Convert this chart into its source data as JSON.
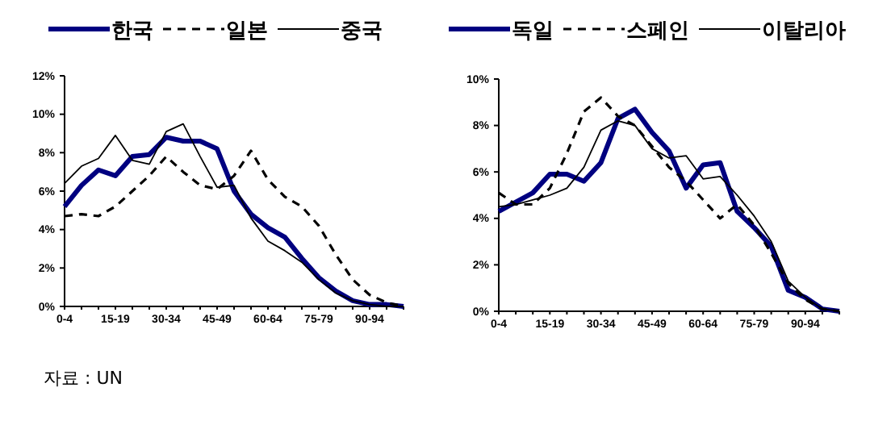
{
  "chart_data": [
    {
      "type": "line",
      "categories": [
        "0-4",
        null,
        null,
        "15-19",
        null,
        null,
        "30-34",
        null,
        null,
        "45-49",
        null,
        null,
        "60-64",
        null,
        null,
        "75-79",
        null,
        null,
        "90-94",
        null,
        null
      ],
      "series": [
        {
          "name": "한국",
          "color": "#000080",
          "line_style": "solid",
          "values": [
            5.2,
            6.3,
            7.1,
            6.8,
            7.8,
            7.9,
            8.8,
            8.6,
            8.6,
            8.2,
            6.0,
            4.8,
            4.1,
            3.6,
            2.5,
            1.5,
            0.8,
            0.3,
            0.1,
            0.1,
            0
          ]
        },
        {
          "name": "일본",
          "color": "#000000",
          "line_style": "dashed",
          "values": [
            4.7,
            4.8,
            4.7,
            5.2,
            6.0,
            6.8,
            7.8,
            7.0,
            6.3,
            6.1,
            6.8,
            8.1,
            6.6,
            5.7,
            5.2,
            4.2,
            2.7,
            1.4,
            0.6,
            0.2,
            0
          ]
        },
        {
          "name": "중국",
          "color": "#000000",
          "line_style": "solid",
          "values": [
            6.4,
            7.3,
            7.7,
            8.9,
            7.6,
            7.4,
            9.1,
            9.5,
            7.8,
            6.2,
            6.3,
            4.6,
            3.4,
            2.9,
            2.3,
            1.4,
            0.7,
            0.3,
            0.1,
            0,
            0
          ]
        }
      ],
      "ylim": [
        0,
        12
      ],
      "yticks": [
        {
          "value": 0,
          "label": "0%"
        },
        {
          "value": 2,
          "label": "2%"
        },
        {
          "value": 4,
          "label": "4%"
        },
        {
          "value": 6,
          "label": "6%"
        },
        {
          "value": 8,
          "label": "8%"
        },
        {
          "value": 10,
          "label": "10%"
        },
        {
          "value": 12,
          "label": "12%"
        }
      ],
      "grid": false,
      "legend": "top",
      "annotations": [
        "자료 : UN"
      ]
    },
    {
      "type": "line",
      "categories": [
        "0-4",
        null,
        null,
        "15-19",
        null,
        null,
        "30-34",
        null,
        null,
        "45-49",
        null,
        null,
        "60-64",
        null,
        null,
        "75-79",
        null,
        null,
        "90-94",
        null,
        null
      ],
      "series": [
        {
          "name": "독일",
          "color": "#000080",
          "line_style": "solid",
          "values": [
            4.3,
            4.7,
            5.1,
            5.9,
            5.9,
            5.6,
            6.4,
            8.3,
            8.7,
            7.7,
            6.9,
            5.3,
            6.3,
            6.4,
            4.3,
            3.6,
            2.8,
            0.9,
            0.6,
            0.1,
            0
          ]
        },
        {
          "name": "스페인",
          "color": "#000000",
          "line_style": "dashed",
          "values": [
            5.1,
            4.6,
            4.6,
            5.3,
            6.8,
            8.6,
            9.2,
            8.4,
            8.0,
            7.1,
            6.2,
            5.6,
            4.8,
            4.0,
            4.6,
            3.7,
            2.5,
            1.2,
            0.5,
            0.1,
            0
          ]
        },
        {
          "name": "이탈리아",
          "color": "#000000",
          "line_style": "solid",
          "values": [
            4.5,
            4.6,
            4.8,
            5.0,
            5.3,
            6.2,
            7.8,
            8.2,
            8.0,
            7.0,
            6.6,
            6.7,
            5.7,
            5.8,
            5.0,
            4.1,
            3.0,
            1.3,
            0.6,
            0.1,
            0
          ]
        }
      ],
      "ylim": [
        0,
        10
      ],
      "yticks": [
        {
          "value": 0,
          "label": "0%"
        },
        {
          "value": 2,
          "label": "2%"
        },
        {
          "value": 4,
          "label": "4%"
        },
        {
          "value": 6,
          "label": "6%"
        },
        {
          "value": 8,
          "label": "8%"
        },
        {
          "value": 10,
          "label": "10%"
        }
      ],
      "grid": false,
      "legend": "top"
    }
  ]
}
